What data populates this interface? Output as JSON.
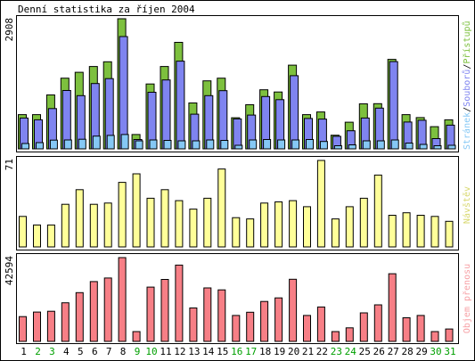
{
  "chart_data": {
    "type": "bar",
    "title": "Denní statistika za říjen 2004",
    "colors": {
      "hits": "#7dc03e",
      "files": "#7f84f0",
      "pages": "#85c8f5",
      "visits": "#ffff99",
      "kbytes": "#f77f86",
      "weekend_label": "#00a000",
      "weekday_label": "#000000",
      "bar_outline": "#000000"
    },
    "categories": [
      "1",
      "2",
      "3",
      "4",
      "5",
      "6",
      "7",
      "8",
      "9",
      "10",
      "11",
      "12",
      "13",
      "14",
      "15",
      "16",
      "17",
      "18",
      "19",
      "20",
      "21",
      "22",
      "23",
      "24",
      "25",
      "26",
      "27",
      "28",
      "29",
      "30",
      "31"
    ],
    "weekend_days": [
      "2",
      "3",
      "9",
      "10",
      "16",
      "17",
      "23",
      "24",
      "30",
      "31"
    ],
    "panels": [
      {
        "id": "hits-files-pages",
        "ymax_label": "2908",
        "ylim": [
          0,
          2908
        ],
        "legend": {
          "pages": "Stránek",
          "files": "Souborů",
          "hits": "Přístupů",
          "separator": "/"
        },
        "series": [
          {
            "key": "hits",
            "name": "Přístupů",
            "values": [
              765,
              765,
              1205,
              1580,
              1710,
              1840,
              1945,
              2908,
              320,
              1450,
              1840,
              2380,
              1025,
              1520,
              1580,
              695,
              985,
              1320,
              1270,
              1870,
              765,
              825,
              305,
              595,
              1005,
              1010,
              2000,
              765,
              700,
              495,
              650
            ]
          },
          {
            "key": "files",
            "name": "Souborů",
            "values": [
              690,
              650,
              900,
              1305,
              1190,
              1460,
              1570,
              2510,
              210,
              1265,
              1540,
              1960,
              775,
              1190,
              1300,
              670,
              755,
              1170,
              1100,
              1635,
              680,
              665,
              280,
              405,
              690,
              910,
              1950,
              600,
              640,
              230,
              530
            ]
          },
          {
            "key": "pages",
            "name": "Stránek",
            "values": [
              120,
              140,
              195,
              200,
              215,
              285,
              300,
              320,
              180,
              200,
              190,
              180,
              180,
              200,
              190,
              80,
              200,
              210,
              200,
              200,
              210,
              165,
              70,
              90,
              180,
              180,
              200,
              130,
              100,
              70,
              80
            ]
          }
        ]
      },
      {
        "id": "visits",
        "ymax_label": "71",
        "ylim": [
          0,
          71
        ],
        "legend": {
          "visits": "Návštěv"
        },
        "series": [
          {
            "key": "visits",
            "name": "Návštěv",
            "values": [
              25,
              18,
              18,
              35,
              47,
              35,
              36,
              53,
              60,
              40,
              47,
              38,
              31,
              40,
              64,
              24,
              23,
              36,
              37,
              38,
              33,
              71,
              23,
              33,
              40,
              59,
              26,
              28,
              26,
              25,
              21
            ]
          }
        ]
      },
      {
        "id": "kbytes",
        "ymax_label": "42594",
        "ylim": [
          0,
          42594
        ],
        "legend": {
          "kbytes": "Objem přenosu"
        },
        "series": [
          {
            "key": "kbytes",
            "name": "Objem přenosu",
            "values": [
              12600,
              14900,
              15300,
              19600,
              24800,
              30400,
              32200,
              42594,
              5000,
              27600,
              31500,
              38800,
              17000,
              27200,
              26200,
              13200,
              14800,
              20300,
              22100,
              31600,
              13200,
              17500,
              5000,
              6900,
              14500,
              18600,
              34400,
              12000,
              13200,
              5000,
              6300
            ]
          }
        ]
      }
    ]
  }
}
